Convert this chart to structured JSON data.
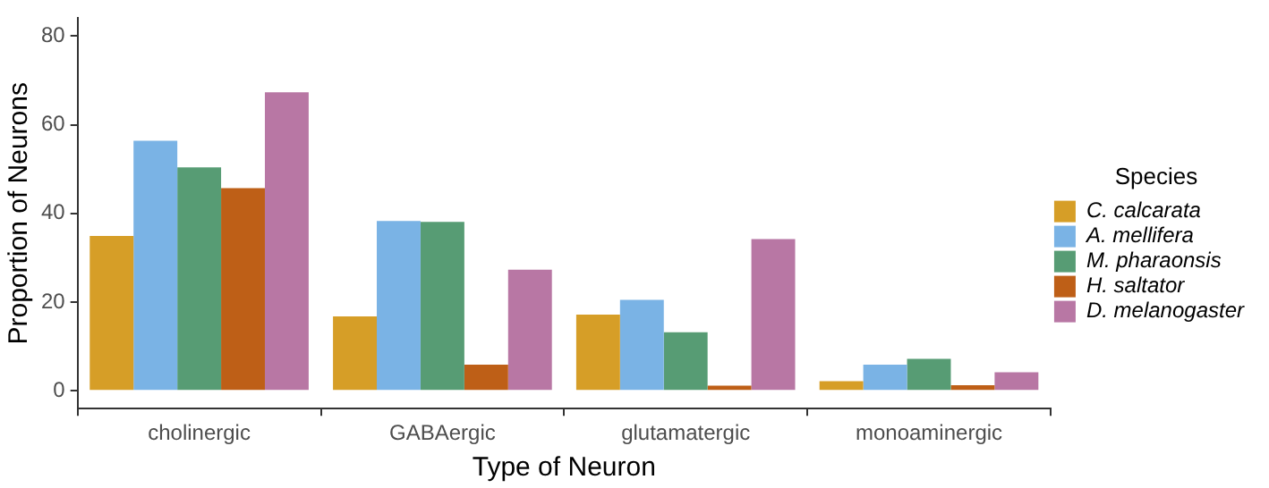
{
  "chart_data": {
    "type": "bar",
    "xlabel": "Type of Neuron",
    "ylabel": "Proportion of Neurons",
    "legend_title": "Species",
    "categories": [
      "cholinergic",
      "GABAergic",
      "glutamatergic",
      "monoaminergic"
    ],
    "series": [
      {
        "name": "C. calcarata",
        "color": "#d69e27",
        "values": [
          34.9,
          16.8,
          17.2,
          2.2
        ]
      },
      {
        "name": "A. mellifera",
        "color": "#7ab3e5",
        "values": [
          56.4,
          38.3,
          20.5,
          5.9
        ]
      },
      {
        "name": "M. pharaonsis",
        "color": "#579c74",
        "values": [
          50.4,
          38.1,
          13.2,
          7.2
        ]
      },
      {
        "name": "H. saltator",
        "color": "#be5f17",
        "values": [
          45.7,
          5.9,
          1.2,
          1.3
        ]
      },
      {
        "name": "D. melanogaster",
        "color": "#b877a4",
        "values": [
          67.3,
          27.3,
          34.2,
          4.2
        ]
      }
    ],
    "ylim": [
      -4,
      84
    ],
    "yticks": [
      0,
      20,
      40,
      60,
      80
    ],
    "grid": false,
    "legend": "right"
  }
}
